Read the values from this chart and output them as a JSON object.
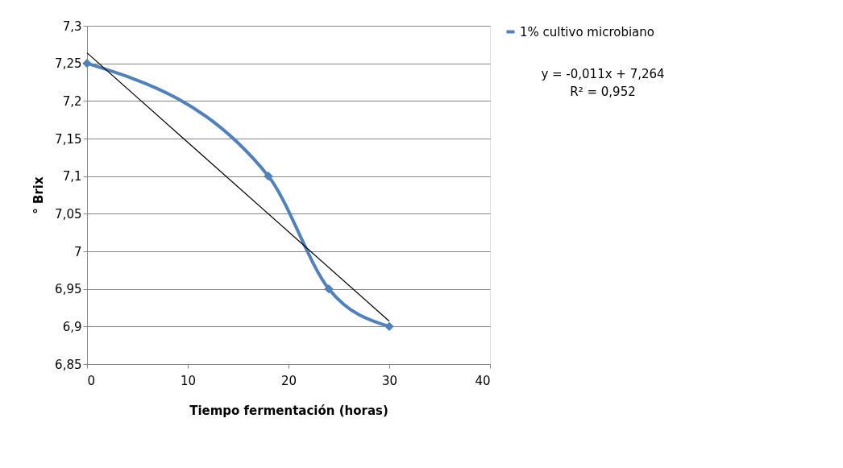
{
  "chart_data": {
    "type": "line",
    "xlabel": "Tiempo fermentación (horas)",
    "ylabel": "° Brix",
    "x": [
      0,
      18,
      24,
      30
    ],
    "series": [
      {
        "name": "1% cultivo microbiano",
        "color": "#4f81bd",
        "values": [
          7.25,
          7.1,
          6.95,
          6.9
        ],
        "marker": "diamond",
        "line_style": "solid"
      },
      {
        "type": "line",
        "color": "#000000",
        "x": [
          0,
          30
        ],
        "values": [
          7.264,
          6.907
        ],
        "marker": "none",
        "line_style": "solid"
      }
    ],
    "xlim": [
      0,
      40
    ],
    "xticks": [
      0,
      10,
      20,
      30,
      40
    ],
    "ylim": [
      6.85,
      7.3
    ],
    "yticks": [
      {
        "value": 6.85,
        "label": "6,85"
      },
      {
        "value": 6.9,
        "label": "6,9"
      },
      {
        "value": 6.95,
        "label": "6,95"
      },
      {
        "value": 7,
        "label": "7"
      },
      {
        "value": 7.05,
        "label": "7,05"
      },
      {
        "value": 7.1,
        "label": "7,1"
      },
      {
        "value": 7.15,
        "label": "7,15"
      },
      {
        "value": 7.2,
        "label": "7,2"
      },
      {
        "value": 7.25,
        "label": "7,25"
      },
      {
        "value": 7.3,
        "label": "7,3"
      }
    ],
    "grid": "y",
    "legend": "right",
    "annotations": [
      "y = -0,011x + 7,264",
      "R² = 0,952"
    ]
  }
}
